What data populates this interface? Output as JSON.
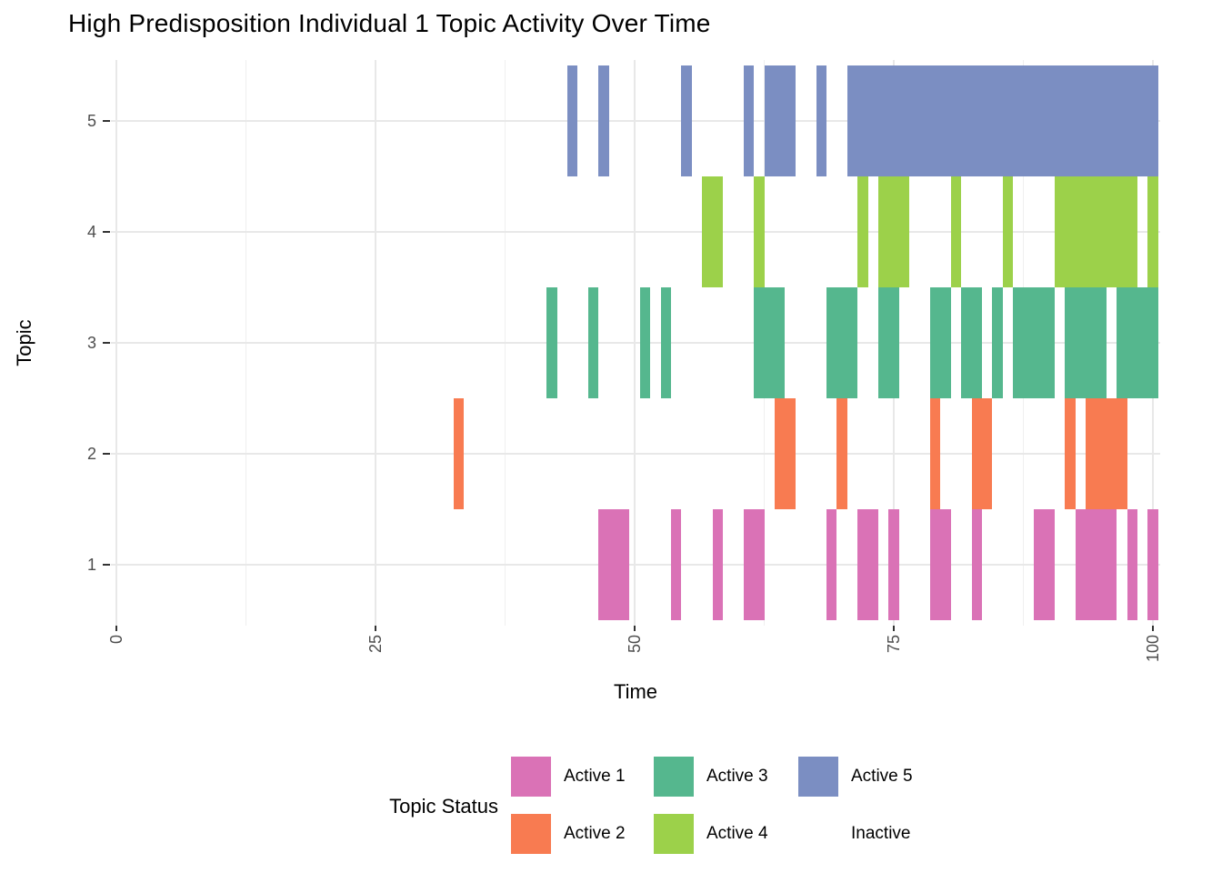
{
  "title": "High Predisposition Individual 1 Topic Activity Over Time",
  "axes": {
    "x": {
      "label": "Time",
      "tick_labels": [
        "0",
        "25",
        "50",
        "75",
        "100"
      ]
    },
    "y": {
      "label": "Topic",
      "tick_labels": [
        "1",
        "2",
        "3",
        "4",
        "5"
      ]
    }
  },
  "legend": {
    "title": "Topic Status",
    "items": [
      {
        "label": "Active 1",
        "color": "#DA72B6"
      },
      {
        "label": "Active 2",
        "color": "#F87B51"
      },
      {
        "label": "Active 3",
        "color": "#55B78E"
      },
      {
        "label": "Active 4",
        "color": "#9CD14A"
      },
      {
        "label": "Active 5",
        "color": "#7B8EC2"
      },
      {
        "label": "Inactive",
        "color": null
      }
    ]
  },
  "chart_data": {
    "type": "heatmap",
    "title": "High Predisposition Individual 1 Topic Activity Over Time",
    "xlabel": "Time",
    "ylabel": "Topic",
    "x_ticks": [
      0,
      25,
      50,
      75,
      100
    ],
    "x_minor_ticks": [
      12.5,
      37.5,
      62.5,
      87.5
    ],
    "y_ticks": [
      1,
      2,
      3,
      4,
      5
    ],
    "xlim": [
      -0.53,
      100.7
    ],
    "ylim": [
      0.45,
      5.55
    ],
    "tile_width": 1,
    "legend_position": "bottom",
    "grid": true,
    "topics": [
      {
        "topic": 1,
        "status_label": "Active 1",
        "color": "#DA72B6",
        "active_segments": [
          [
            47,
            49
          ],
          [
            54,
            54
          ],
          [
            58,
            58
          ],
          [
            61,
            62
          ],
          [
            69,
            69
          ],
          [
            72,
            73
          ],
          [
            75,
            75
          ],
          [
            79,
            80
          ],
          [
            83,
            83
          ],
          [
            89,
            90
          ],
          [
            93,
            96
          ],
          [
            98,
            98
          ],
          [
            100,
            100
          ]
        ]
      },
      {
        "topic": 2,
        "status_label": "Active 2",
        "color": "#F87B51",
        "active_segments": [
          [
            33,
            33
          ],
          [
            64,
            65
          ],
          [
            70,
            70
          ],
          [
            79,
            79
          ],
          [
            83,
            84
          ],
          [
            92,
            92
          ],
          [
            94,
            97
          ]
        ]
      },
      {
        "topic": 3,
        "status_label": "Active 3",
        "color": "#55B78E",
        "active_segments": [
          [
            42,
            42
          ],
          [
            46,
            46
          ],
          [
            51,
            51
          ],
          [
            53,
            53
          ],
          [
            62,
            64
          ],
          [
            69,
            71
          ],
          [
            74,
            75
          ],
          [
            79,
            80
          ],
          [
            82,
            83
          ],
          [
            85,
            85
          ],
          [
            87,
            90
          ],
          [
            92,
            95
          ],
          [
            97,
            100
          ]
        ]
      },
      {
        "topic": 4,
        "status_label": "Active 4",
        "color": "#9CD14A",
        "active_segments": [
          [
            57,
            58
          ],
          [
            62,
            62
          ],
          [
            72,
            72
          ],
          [
            74,
            76
          ],
          [
            81,
            81
          ],
          [
            86,
            86
          ],
          [
            91,
            98
          ],
          [
            100,
            100
          ]
        ]
      },
      {
        "topic": 5,
        "status_label": "Active 5",
        "color": "#7B8EC2",
        "active_segments": [
          [
            44,
            44
          ],
          [
            47,
            47
          ],
          [
            55,
            55
          ],
          [
            61,
            61
          ],
          [
            63,
            65
          ],
          [
            68,
            68
          ],
          [
            71,
            100
          ]
        ]
      }
    ]
  }
}
